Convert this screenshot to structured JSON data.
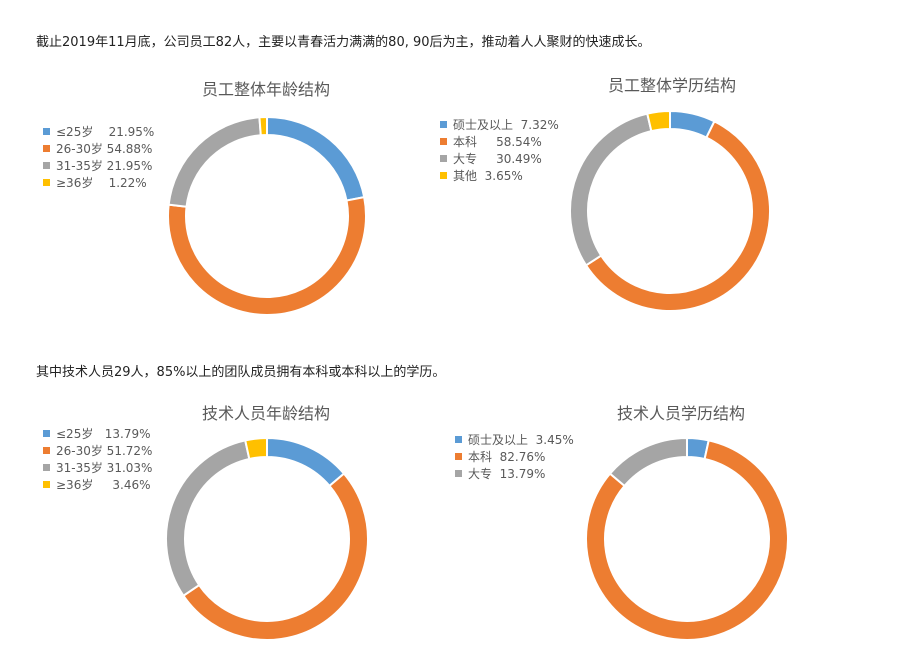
{
  "intro_text": "截止2019年11月底，公司员工82人，主要以青春活力满满的80, 90后为主，推动着人人聚财的快速成长。",
  "tech_intro_text": "其中技术人员29人，85%以上的团队成员拥有本科或本科以上的学历。",
  "colors": {
    "blue": "#5B9BD5",
    "orange": "#ED7D31",
    "gray": "#A5A5A5",
    "yellow": "#FFC000"
  },
  "chart_data": [
    {
      "type": "pie",
      "title": "员工整体年龄结构",
      "categories": [
        "≤25岁",
        "26-30岁",
        "31-35岁",
        "≥36岁"
      ],
      "values": [
        21.95,
        54.88,
        21.95,
        1.22
      ],
      "legend": [
        "≤25岁    21.95%",
        "26-30岁 54.88%",
        "31-35岁 21.95%",
        "≥36岁    1.22%"
      ],
      "colors": [
        "#5B9BD5",
        "#ED7D31",
        "#A5A5A5",
        "#FFC000"
      ],
      "legend_position": "left"
    },
    {
      "type": "pie",
      "title": "员工整体学历结构",
      "categories": [
        "硕士及以上",
        "本科",
        "大专",
        "其他"
      ],
      "values": [
        7.32,
        58.54,
        30.49,
        3.65
      ],
      "legend": [
        "硕士及以上  7.32%",
        "本科     58.54%",
        "大专     30.49%",
        "其他  3.65%"
      ],
      "colors": [
        "#5B9BD5",
        "#ED7D31",
        "#A5A5A5",
        "#FFC000"
      ],
      "legend_position": "left"
    },
    {
      "type": "pie",
      "title": "技术人员年龄结构",
      "categories": [
        "≤25岁",
        "26-30岁",
        "31-35岁",
        "≥36岁"
      ],
      "values": [
        13.79,
        51.72,
        31.03,
        3.46
      ],
      "legend": [
        "≤25岁   13.79%",
        "26-30岁 51.72%",
        "31-35岁 31.03%",
        "≥36岁     3.46%"
      ],
      "colors": [
        "#5B9BD5",
        "#ED7D31",
        "#A5A5A5",
        "#FFC000"
      ],
      "legend_position": "left"
    },
    {
      "type": "pie",
      "title": "技术人员学历结构",
      "categories": [
        "硕士及以上",
        "本科",
        "大专"
      ],
      "values": [
        3.45,
        82.76,
        13.79
      ],
      "legend": [
        "硕士及以上  3.45%",
        "本科  82.76%",
        "大专  13.79%"
      ],
      "colors": [
        "#5B9BD5",
        "#ED7D31",
        "#A5A5A5"
      ],
      "legend_position": "left"
    }
  ]
}
